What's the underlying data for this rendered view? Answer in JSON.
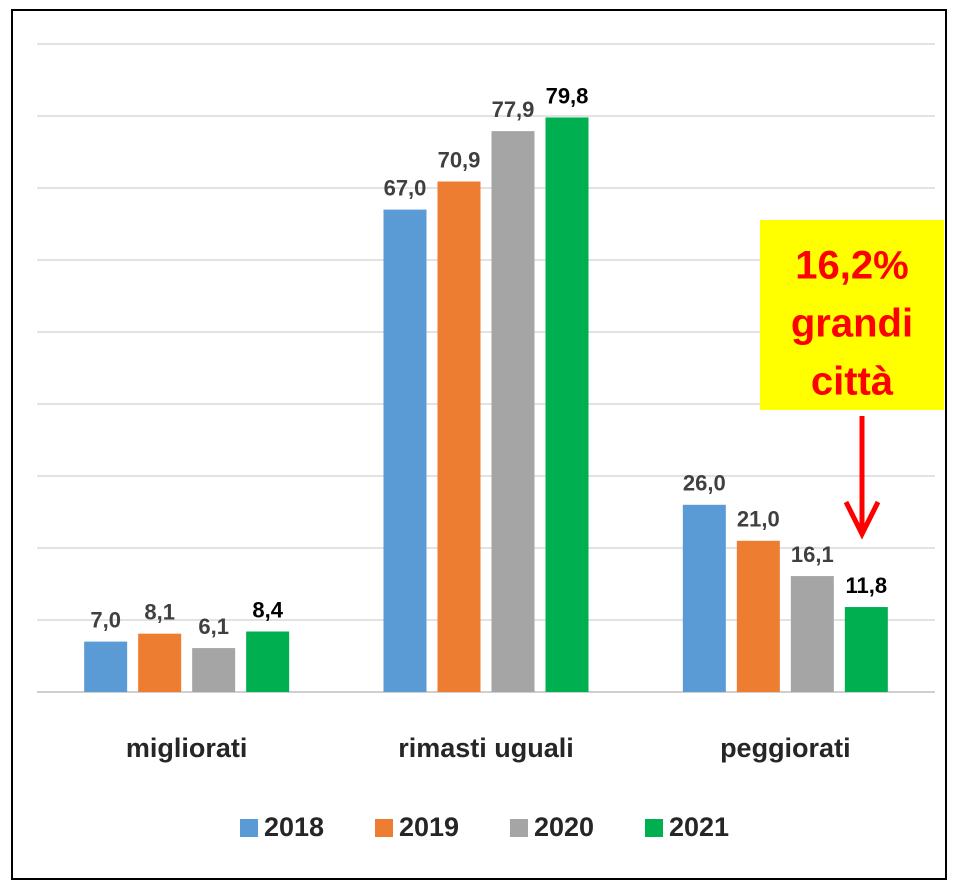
{
  "chart_data": {
    "type": "bar",
    "categories": [
      "migliorati",
      "rimasti uguali",
      "peggiorati"
    ],
    "series": [
      {
        "name": "2018",
        "color": "#5b9bd5",
        "values": [
          7.0,
          67.0,
          26.0
        ],
        "value_labels": [
          "7,0",
          "67,0",
          "26,0"
        ]
      },
      {
        "name": "2019",
        "color": "#ed7d31",
        "values": [
          8.1,
          70.9,
          21.0
        ],
        "value_labels": [
          "8,1",
          "70,9",
          "21,0"
        ]
      },
      {
        "name": "2020",
        "color": "#a5a5a5",
        "values": [
          6.1,
          77.9,
          16.1
        ],
        "value_labels": [
          "6,1",
          "77,9",
          "16,1"
        ]
      },
      {
        "name": "2021",
        "color": "#00b050",
        "values": [
          8.4,
          79.8,
          11.8
        ],
        "value_labels": [
          "8,4",
          "79,8",
          "11,8"
        ]
      }
    ],
    "ylim": [
      0,
      90
    ],
    "yticks": [
      0,
      10,
      20,
      30,
      40,
      50,
      60,
      70,
      80,
      90
    ],
    "grid": true,
    "legend": "bottom",
    "annotation": [
      "16,2%",
      "grandi",
      "città"
    ]
  }
}
